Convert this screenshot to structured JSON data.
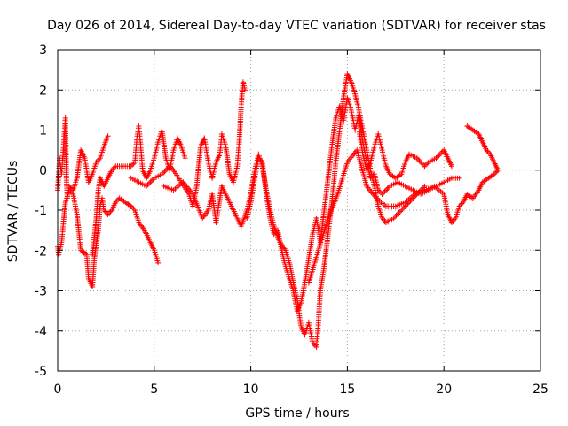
{
  "chart_data": {
    "type": "scatter",
    "title": "Day 026 of 2014, Sidereal Day-to-day VTEC variation (SDTVAR) for receiver stas",
    "xlabel": "GPS time / hours",
    "ylabel": "SDTVAR / TECUs",
    "xlim": [
      0,
      25
    ],
    "ylim": [
      -5,
      3
    ],
    "xticks": [
      0,
      5,
      10,
      15,
      20,
      25
    ],
    "yticks": [
      -5,
      -4,
      -3,
      -2,
      -1,
      0,
      1,
      2,
      3
    ],
    "grid": true,
    "marker": "+",
    "series": [
      {
        "name": "SDTVAR",
        "color": "#ff0000",
        "tracks": [
          [
            [
              0.0,
              -0.5
            ],
            [
              0.1,
              0.3
            ],
            [
              0.2,
              -0.1
            ],
            [
              0.3,
              0.6
            ],
            [
              0.4,
              1.3
            ],
            [
              0.45,
              -0.2
            ],
            [
              0.5,
              -0.7
            ],
            [
              0.6,
              -0.4
            ],
            [
              0.8,
              -0.5
            ],
            [
              1.0,
              -0.2
            ],
            [
              1.2,
              0.5
            ],
            [
              1.4,
              0.3
            ],
            [
              1.6,
              -0.3
            ],
            [
              1.8,
              -0.1
            ],
            [
              2.0,
              0.2
            ],
            [
              2.2,
              0.3
            ],
            [
              2.4,
              0.6
            ],
            [
              2.6,
              0.85
            ]
          ],
          [
            [
              0.0,
              -1.9
            ],
            [
              0.05,
              -2.1
            ],
            [
              0.2,
              -1.8
            ],
            [
              0.4,
              -0.8
            ],
            [
              0.6,
              -0.5
            ],
            [
              0.8,
              -0.6
            ],
            [
              1.0,
              -1.1
            ],
            [
              1.2,
              -2.0
            ],
            [
              1.5,
              -2.1
            ],
            [
              1.6,
              -2.7
            ],
            [
              1.8,
              -2.9
            ],
            [
              1.9,
              -2.2
            ],
            [
              2.1,
              -1.5
            ],
            [
              2.2,
              -0.9
            ],
            [
              2.3,
              -0.7
            ],
            [
              2.4,
              -1.0
            ],
            [
              2.6,
              -1.1
            ],
            [
              2.8,
              -1.0
            ],
            [
              3.0,
              -0.8
            ],
            [
              3.2,
              -0.7
            ],
            [
              3.5,
              -0.8
            ],
            [
              3.8,
              -0.9
            ],
            [
              4.0,
              -1.0
            ],
            [
              4.2,
              -1.3
            ],
            [
              4.5,
              -1.5
            ],
            [
              4.8,
              -1.8
            ],
            [
              5.0,
              -2.0
            ],
            [
              5.2,
              -2.3
            ]
          ],
          [
            [
              1.8,
              -2.1
            ],
            [
              2.0,
              -1.2
            ],
            [
              2.1,
              -0.5
            ],
            [
              2.2,
              -0.2
            ],
            [
              2.4,
              -0.4
            ],
            [
              2.6,
              -0.2
            ],
            [
              2.8,
              0.0
            ],
            [
              3.0,
              0.1
            ],
            [
              3.4,
              0.1
            ],
            [
              3.8,
              0.1
            ],
            [
              4.0,
              0.2
            ],
            [
              4.1,
              0.8
            ],
            [
              4.2,
              1.1
            ],
            [
              4.3,
              0.6
            ],
            [
              4.4,
              0.0
            ],
            [
              4.6,
              -0.2
            ],
            [
              4.8,
              0.0
            ],
            [
              5.0,
              0.3
            ],
            [
              5.2,
              0.7
            ],
            [
              5.4,
              1.0
            ],
            [
              5.6,
              0.3
            ],
            [
              5.8,
              0.0
            ],
            [
              6.0,
              0.5
            ],
            [
              6.2,
              0.8
            ],
            [
              6.4,
              0.6
            ],
            [
              6.6,
              0.3
            ]
          ],
          [
            [
              3.8,
              -0.2
            ],
            [
              4.2,
              -0.3
            ],
            [
              4.6,
              -0.4
            ],
            [
              5.0,
              -0.2
            ],
            [
              5.4,
              -0.1
            ],
            [
              5.8,
              0.1
            ],
            [
              6.0,
              0.0
            ],
            [
              6.4,
              -0.3
            ],
            [
              6.8,
              -0.6
            ],
            [
              7.0,
              -0.9
            ],
            [
              7.2,
              -0.4
            ],
            [
              7.4,
              0.6
            ],
            [
              7.6,
              0.8
            ],
            [
              7.8,
              0.2
            ],
            [
              8.0,
              -0.2
            ],
            [
              8.2,
              0.2
            ],
            [
              8.4,
              0.4
            ],
            [
              8.5,
              0.9
            ],
            [
              8.7,
              0.6
            ],
            [
              8.9,
              -0.1
            ],
            [
              9.1,
              -0.3
            ],
            [
              9.3,
              0.1
            ],
            [
              9.4,
              0.7
            ],
            [
              9.5,
              1.6
            ],
            [
              9.6,
              2.2
            ],
            [
              9.7,
              2.0
            ]
          ],
          [
            [
              5.5,
              -0.4
            ],
            [
              6.0,
              -0.5
            ],
            [
              6.5,
              -0.3
            ],
            [
              7.0,
              -0.6
            ],
            [
              7.5,
              -1.2
            ],
            [
              7.8,
              -1.0
            ],
            [
              8.0,
              -0.6
            ],
            [
              8.2,
              -1.3
            ],
            [
              8.5,
              -0.4
            ],
            [
              9.0,
              -0.9
            ],
            [
              9.5,
              -1.4
            ],
            [
              9.8,
              -1.0
            ],
            [
              10.0,
              -0.6
            ],
            [
              10.2,
              0.0
            ],
            [
              10.4,
              0.4
            ],
            [
              10.6,
              0.1
            ],
            [
              10.8,
              -0.5
            ],
            [
              11.0,
              -1.0
            ],
            [
              11.2,
              -1.4
            ],
            [
              11.5,
              -1.8
            ],
            [
              11.8,
              -2.0
            ],
            [
              12.0,
              -2.3
            ],
            [
              12.2,
              -2.8
            ],
            [
              12.4,
              -3.2
            ],
            [
              12.6,
              -3.9
            ],
            [
              12.8,
              -4.1
            ],
            [
              13.0,
              -3.8
            ],
            [
              13.2,
              -4.3
            ],
            [
              13.4,
              -4.4
            ],
            [
              13.5,
              -3.8
            ],
            [
              13.6,
              -3.0
            ],
            [
              13.8,
              -2.4
            ],
            [
              14.0,
              -1.6
            ],
            [
              14.2,
              -0.8
            ],
            [
              14.4,
              0.2
            ],
            [
              14.6,
              1.0
            ],
            [
              14.8,
              1.8
            ],
            [
              15.0,
              2.4
            ],
            [
              15.2,
              2.2
            ],
            [
              15.4,
              1.9
            ],
            [
              15.6,
              1.5
            ],
            [
              15.8,
              1.0
            ],
            [
              16.0,
              0.5
            ],
            [
              16.2,
              0.0
            ],
            [
              16.4,
              -0.4
            ],
            [
              16.6,
              -0.9
            ],
            [
              16.8,
              -1.2
            ],
            [
              17.0,
              -1.3
            ],
            [
              17.4,
              -1.2
            ],
            [
              17.8,
              -1.0
            ],
            [
              18.2,
              -0.8
            ],
            [
              18.6,
              -0.6
            ],
            [
              19.0,
              -0.4
            ]
          ],
          [
            [
              9.8,
              -1.2
            ],
            [
              10.0,
              -0.8
            ],
            [
              10.2,
              -0.2
            ],
            [
              10.4,
              0.3
            ],
            [
              10.6,
              0.2
            ],
            [
              10.8,
              -0.6
            ],
            [
              11.0,
              -1.2
            ],
            [
              11.2,
              -1.6
            ],
            [
              11.4,
              -1.5
            ],
            [
              11.6,
              -2.0
            ],
            [
              11.8,
              -2.4
            ],
            [
              12.0,
              -2.7
            ],
            [
              12.2,
              -3.0
            ],
            [
              12.4,
              -3.5
            ],
            [
              12.6,
              -3.3
            ],
            [
              12.8,
              -2.8
            ],
            [
              13.0,
              -2.2
            ],
            [
              13.2,
              -1.6
            ],
            [
              13.4,
              -1.2
            ],
            [
              13.6,
              -1.8
            ],
            [
              13.8,
              -1.0
            ],
            [
              14.0,
              -0.2
            ],
            [
              14.2,
              0.6
            ],
            [
              14.4,
              1.3
            ],
            [
              14.6,
              1.6
            ],
            [
              14.8,
              1.2
            ],
            [
              15.0,
              1.8
            ],
            [
              15.2,
              1.5
            ],
            [
              15.4,
              1.0
            ],
            [
              15.6,
              1.4
            ],
            [
              15.8,
              0.7
            ],
            [
              16.0,
              0.2
            ],
            [
              16.2,
              -0.2
            ],
            [
              16.4,
              -0.1
            ],
            [
              16.6,
              -0.5
            ],
            [
              16.8,
              -0.6
            ],
            [
              17.0,
              -0.5
            ],
            [
              17.2,
              -0.4
            ],
            [
              17.6,
              -0.3
            ],
            [
              18.0,
              -0.4
            ],
            [
              18.4,
              -0.5
            ],
            [
              18.8,
              -0.6
            ],
            [
              19.2,
              -0.5
            ],
            [
              19.6,
              -0.4
            ],
            [
              20.0,
              -0.3
            ],
            [
              20.4,
              -0.2
            ],
            [
              20.8,
              -0.2
            ]
          ],
          [
            [
              15.6,
              1.0
            ],
            [
              15.8,
              0.4
            ],
            [
              16.0,
              0.0
            ],
            [
              16.2,
              0.2
            ],
            [
              16.4,
              0.6
            ],
            [
              16.6,
              0.9
            ],
            [
              16.8,
              0.5
            ],
            [
              17.0,
              0.1
            ],
            [
              17.2,
              -0.1
            ],
            [
              17.5,
              -0.2
            ],
            [
              17.8,
              -0.1
            ],
            [
              18.0,
              0.2
            ],
            [
              18.2,
              0.4
            ],
            [
              18.6,
              0.3
            ],
            [
              19.0,
              0.1
            ],
            [
              19.2,
              0.2
            ],
            [
              19.6,
              0.3
            ],
            [
              20.0,
              0.5
            ],
            [
              20.2,
              0.3
            ],
            [
              20.4,
              0.1
            ]
          ],
          [
            [
              13.0,
              -2.8
            ],
            [
              13.5,
              -2.0
            ],
            [
              14.0,
              -1.2
            ],
            [
              14.5,
              -0.6
            ],
            [
              15.0,
              0.2
            ],
            [
              15.5,
              0.5
            ],
            [
              16.0,
              -0.4
            ],
            [
              16.5,
              -0.7
            ],
            [
              17.0,
              -0.9
            ],
            [
              17.5,
              -0.9
            ],
            [
              18.0,
              -0.8
            ],
            [
              18.5,
              -0.6
            ],
            [
              19.0,
              -0.5
            ],
            [
              19.5,
              -0.4
            ],
            [
              20.0,
              -0.6
            ],
            [
              20.2,
              -1.1
            ],
            [
              20.4,
              -1.3
            ],
            [
              20.6,
              -1.2
            ],
            [
              20.8,
              -0.9
            ],
            [
              21.0,
              -0.8
            ],
            [
              21.2,
              -0.6
            ],
            [
              21.5,
              -0.7
            ],
            [
              21.8,
              -0.5
            ],
            [
              22.0,
              -0.3
            ],
            [
              22.3,
              -0.2
            ],
            [
              22.6,
              -0.1
            ],
            [
              22.8,
              0.0
            ]
          ],
          [
            [
              21.2,
              1.1
            ],
            [
              21.5,
              1.0
            ],
            [
              21.8,
              0.9
            ],
            [
              22.0,
              0.7
            ],
            [
              22.2,
              0.5
            ],
            [
              22.4,
              0.4
            ],
            [
              22.6,
              0.2
            ],
            [
              22.8,
              0.0
            ]
          ]
        ]
      }
    ]
  }
}
